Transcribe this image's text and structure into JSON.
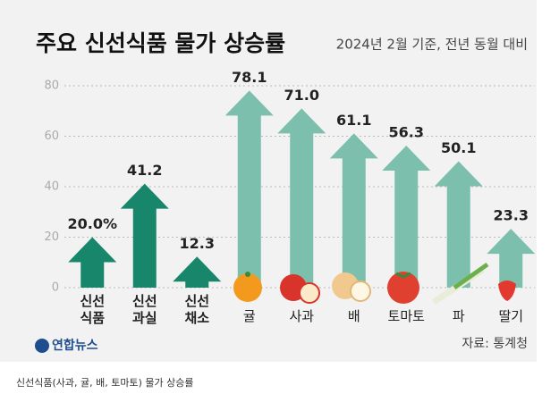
{
  "chart_data": {
    "type": "arrow-bar",
    "title": "주요 신선식품 물가 상승률",
    "subtitle": "2024년 2월 기준, 전년 동월 대비",
    "categories": [
      "신선\n식품",
      "신선\n과실",
      "신선\n채소",
      "귤",
      "사과",
      "배",
      "토마토",
      "파",
      "딸기"
    ],
    "values": [
      20.0,
      41.2,
      12.3,
      78.1,
      71.0,
      61.1,
      56.3,
      50.1,
      23.3
    ],
    "value_labels": [
      "20.0%",
      "41.2",
      "12.3",
      "78.1",
      "71.0",
      "61.1",
      "56.3",
      "50.1",
      "23.3"
    ],
    "colors": [
      "#17866a",
      "#17866a",
      "#17866a",
      "#7bbfac",
      "#7bbfac",
      "#7bbfac",
      "#7bbfac",
      "#7bbfac",
      "#7bbfac"
    ],
    "ylim": [
      0,
      80
    ],
    "yticks": [
      0,
      20,
      40,
      60,
      80
    ],
    "grid": true,
    "source": "자료: 통계청",
    "logo": "연합뉴스"
  },
  "caption": "신선식품(사과, 귤, 배, 토마토) 물가 상승률"
}
